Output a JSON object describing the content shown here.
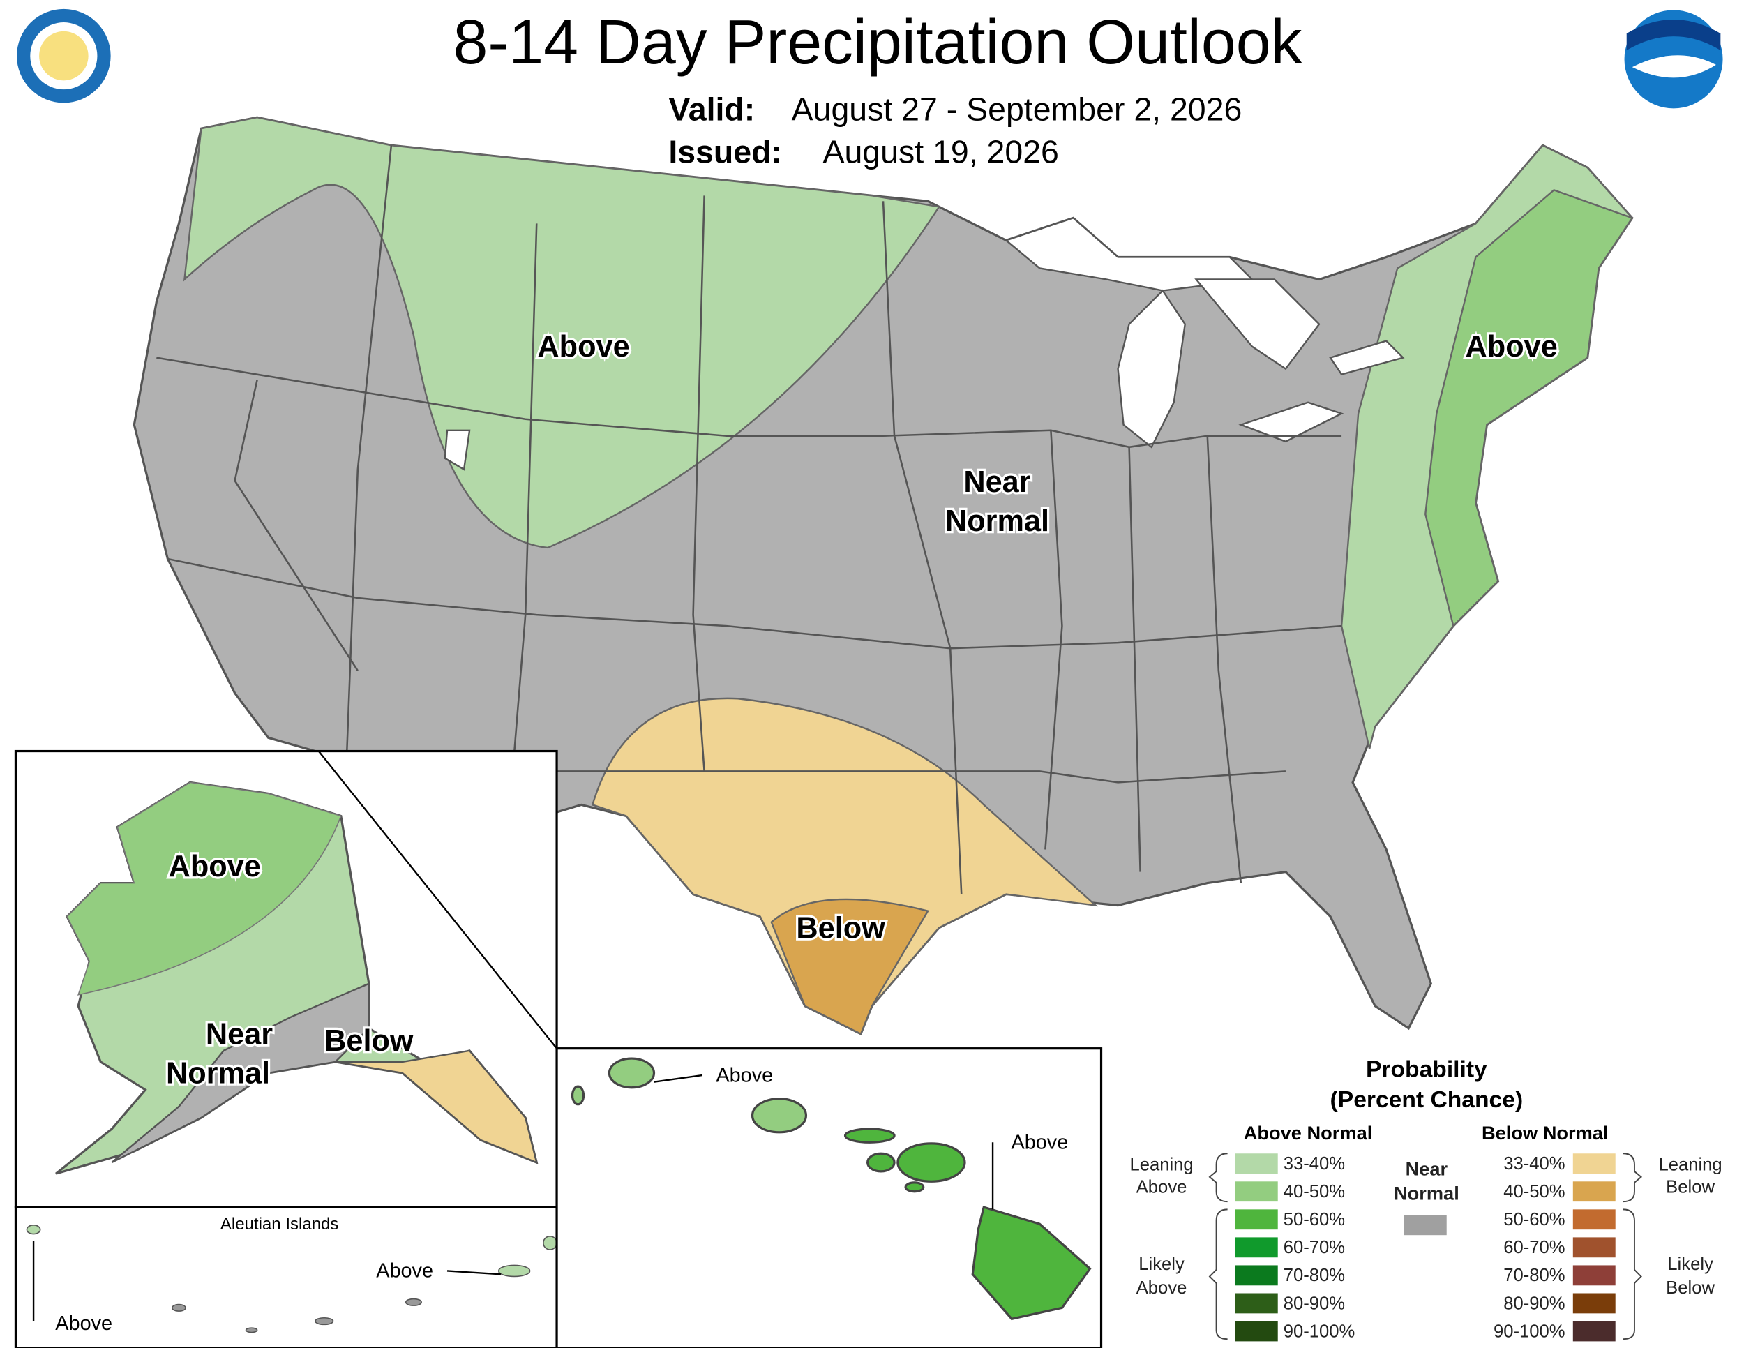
{
  "header": {
    "title": "8-14 Day Precipitation Outlook",
    "valid_label": "Valid:",
    "valid_dates": "August 27 - September 2, 2026",
    "issued_label": "Issued:",
    "issued_date": "August 19, 2026"
  },
  "map_labels": {
    "northwest": "Above",
    "northeast": "Above",
    "central": [
      "Near",
      "Normal"
    ],
    "texas": "Below",
    "alaska_above": "Above",
    "alaska_near": [
      "Near",
      "Normal"
    ],
    "alaska_below": "Below",
    "hawaii_kauai": "Above",
    "hawaii_big_island": "Above",
    "aleutian_west": "Above",
    "aleutian_east": "Above",
    "aleutian_title": "Aleutian Islands"
  },
  "legend": {
    "title": [
      "Probability",
      "(Percent Chance)"
    ],
    "above": {
      "heading": "Above Normal",
      "items": [
        {
          "label": "33-40%",
          "color": "#b3d9a8"
        },
        {
          "label": "40-50%",
          "color": "#93cd80"
        },
        {
          "label": "50-60%",
          "color": "#4fb53d"
        },
        {
          "label": "60-70%",
          "color": "#109a2c"
        },
        {
          "label": "70-80%",
          "color": "#0b7a1e"
        },
        {
          "label": "80-90%",
          "color": "#2d5e18"
        },
        {
          "label": "90-100%",
          "color": "#234a10"
        }
      ]
    },
    "below": {
      "heading": "Below Normal",
      "items": [
        {
          "label": "33-40%",
          "color": "#f0d493"
        },
        {
          "label": "40-50%",
          "color": "#d9a54f"
        },
        {
          "label": "50-60%",
          "color": "#c26b2f"
        },
        {
          "label": "60-70%",
          "color": "#a0522d"
        },
        {
          "label": "70-80%",
          "color": "#8e3f38"
        },
        {
          "label": "80-90%",
          "color": "#7a3d0a"
        },
        {
          "label": "90-100%",
          "color": "#4b2c2c"
        }
      ]
    },
    "near": {
      "label": [
        "Near",
        "Normal"
      ],
      "color": "#a0a0a0"
    },
    "leaning_above": [
      "Leaning",
      "Above"
    ],
    "likely_above": [
      "Likely",
      "Above"
    ],
    "leaning_below": [
      "Leaning",
      "Below"
    ],
    "likely_below": [
      "Likely",
      "Below"
    ]
  }
}
